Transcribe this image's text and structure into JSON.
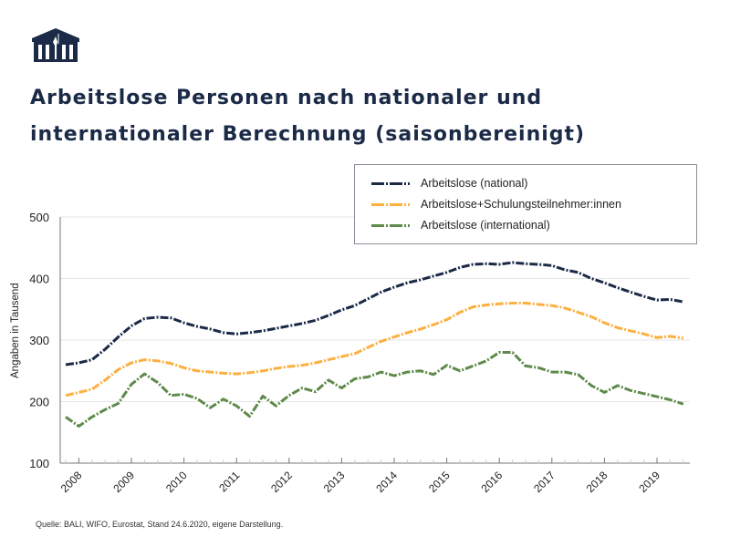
{
  "logo": {
    "icon": "parliament-building-icon",
    "color": "#1b2a47"
  },
  "source_note": "Quelle: BALI, WIFO, Eurostat, Stand 24.6.2020, eigene Darstellung.",
  "chart_data": {
    "type": "line",
    "title_lines": [
      "Arbeitslose Personen nach nationaler und",
      "internationaler Berechnung (saisonbereinigt)"
    ],
    "xlabel": "",
    "ylabel": "Angaben in Tausend",
    "ylim": [
      100,
      500
    ],
    "yticks": [
      100,
      200,
      300,
      400,
      500
    ],
    "grid": true,
    "x_frequency": "quarterly",
    "x_start": "2008-Q1",
    "x_end": "2019-Q4",
    "xtick_labels": [
      "2008",
      "2009",
      "2010",
      "2011",
      "2012",
      "2013",
      "2014",
      "2015",
      "2016",
      "2017",
      "2018",
      "2019"
    ],
    "legend_position": "top-right",
    "series": [
      {
        "name": "Arbeitslose (national)",
        "color": "#1b2a47",
        "style": "dash-dot",
        "values": [
          260,
          263,
          268,
          285,
          305,
          323,
          335,
          337,
          336,
          328,
          322,
          318,
          312,
          310,
          312,
          315,
          319,
          323,
          327,
          332,
          340,
          349,
          356,
          367,
          378,
          386,
          393,
          398,
          404,
          410,
          418,
          423,
          424,
          423,
          426,
          424,
          423,
          421,
          414,
          410,
          400,
          393,
          385,
          378,
          371,
          365,
          366,
          362
        ]
      },
      {
        "name": "Arbeitslose+Schulungsteilnehmer:innen",
        "color": "#fbb040",
        "style": "dash-dot",
        "values": [
          210,
          215,
          220,
          235,
          252,
          263,
          268,
          266,
          262,
          255,
          250,
          248,
          246,
          245,
          247,
          250,
          254,
          257,
          259,
          263,
          268,
          273,
          278,
          288,
          298,
          305,
          312,
          318,
          325,
          333,
          345,
          354,
          357,
          359,
          360,
          360,
          358,
          356,
          352,
          345,
          338,
          328,
          320,
          315,
          310,
          304,
          306,
          303
        ]
      },
      {
        "name": "Arbeitslose (international)",
        "color": "#5e8a4a",
        "style": "dash-dot",
        "values": [
          175,
          160,
          175,
          187,
          197,
          228,
          245,
          231,
          210,
          212,
          205,
          190,
          204,
          193,
          176,
          209,
          193,
          210,
          222,
          216,
          235,
          222,
          237,
          240,
          248,
          242,
          248,
          250,
          244,
          259,
          250,
          258,
          266,
          280,
          280,
          258,
          255,
          248,
          248,
          244,
          226,
          215,
          226,
          218,
          213,
          208,
          203,
          196
        ]
      }
    ]
  }
}
